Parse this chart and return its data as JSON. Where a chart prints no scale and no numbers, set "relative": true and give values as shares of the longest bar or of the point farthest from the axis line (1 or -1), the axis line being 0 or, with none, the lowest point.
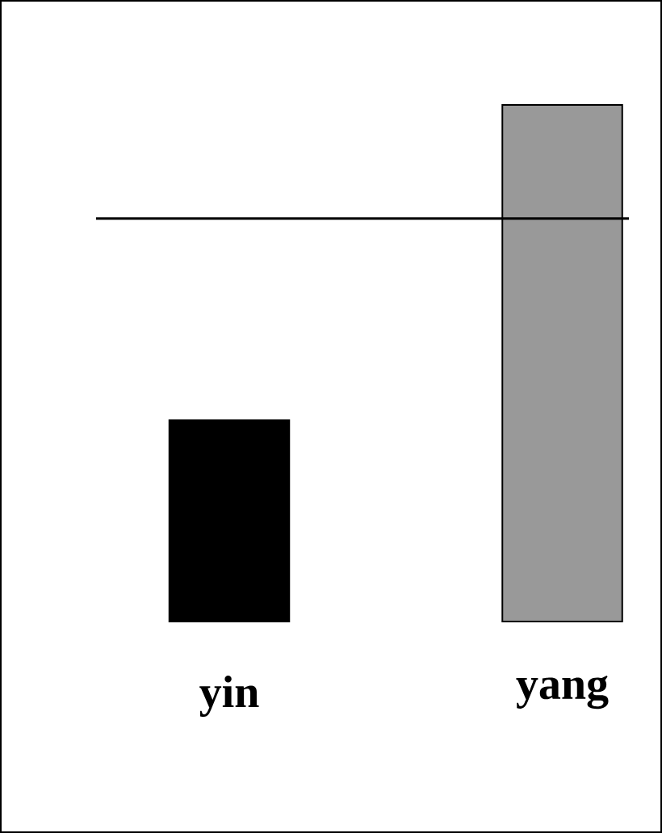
{
  "chart_data": {
    "type": "bar",
    "relative": true,
    "categories": [
      "yin",
      "yang"
    ],
    "values": [
      0.39,
      1
    ],
    "colors": [
      "#000000",
      "#999999"
    ],
    "ref_lines": [
      {
        "axis": "y",
        "value": 0.78,
        "color": "#000000"
      }
    ]
  }
}
